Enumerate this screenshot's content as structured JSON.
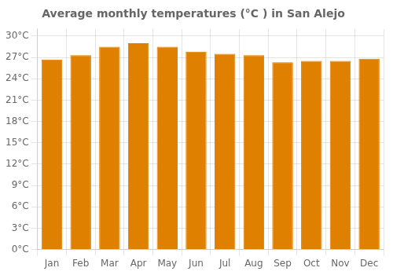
{
  "chart_data": {
    "type": "bar",
    "title": "Average monthly temperatures (°C ) in San Alejo",
    "categories": [
      "Jan",
      "Feb",
      "Mar",
      "Apr",
      "May",
      "Jun",
      "Jul",
      "Aug",
      "Sep",
      "Oct",
      "Nov",
      "Dec"
    ],
    "values": [
      26.7,
      27.3,
      28.5,
      29.0,
      28.5,
      27.8,
      27.5,
      27.3,
      26.3,
      26.5,
      26.5,
      26.8
    ],
    "color": "#E08000",
    "ylim": [
      0,
      31
    ],
    "yticks": [
      {
        "value": 0,
        "label": "0°C"
      },
      {
        "value": 3,
        "label": "3°C"
      },
      {
        "value": 6,
        "label": "6°C"
      },
      {
        "value": 9,
        "label": "9°C"
      },
      {
        "value": 12,
        "label": "12°C"
      },
      {
        "value": 15,
        "label": "15°C"
      },
      {
        "value": 18,
        "label": "18°C"
      },
      {
        "value": 21,
        "label": "21°C"
      },
      {
        "value": 24,
        "label": "24°C"
      },
      {
        "value": 27,
        "label": "27°C"
      },
      {
        "value": 30,
        "label": "30°C"
      }
    ],
    "grid": true
  }
}
